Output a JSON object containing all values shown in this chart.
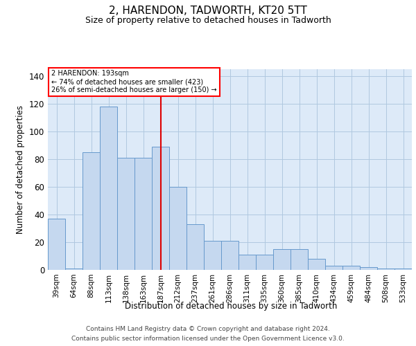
{
  "title1": "2, HARENDON, TADWORTH, KT20 5TT",
  "title2": "Size of property relative to detached houses in Tadworth",
  "xlabel": "Distribution of detached houses by size in Tadworth",
  "ylabel": "Number of detached properties",
  "categories": [
    "39sqm",
    "64sqm",
    "88sqm",
    "113sqm",
    "138sqm",
    "163sqm",
    "187sqm",
    "212sqm",
    "237sqm",
    "261sqm",
    "286sqm",
    "311sqm",
    "335sqm",
    "360sqm",
    "385sqm",
    "410sqm",
    "434sqm",
    "459sqm",
    "484sqm",
    "508sqm",
    "533sqm"
  ],
  "bar_heights": [
    37,
    1,
    85,
    118,
    81,
    81,
    89,
    60,
    33,
    21,
    21,
    11,
    11,
    15,
    15,
    8,
    3,
    3,
    2,
    1,
    1
  ],
  "bar_color": "#c5d8ef",
  "bar_edge_color": "#6699cc",
  "vline_index": 6,
  "vline_color": "#dd0000",
  "annotation_line1": "2 HARENDON: 193sqm",
  "annotation_line2": "← 74% of detached houses are smaller (423)",
  "annotation_line3": "26% of semi-detached houses are larger (150) →",
  "ylim_max": 145,
  "yticks": [
    0,
    20,
    40,
    60,
    80,
    100,
    120,
    140
  ],
  "grid_color": "#b0c8e0",
  "bg_color": "#ddeaf8",
  "footer1": "Contains HM Land Registry data © Crown copyright and database right 2024.",
  "footer2": "Contains public sector information licensed under the Open Government Licence v3.0."
}
